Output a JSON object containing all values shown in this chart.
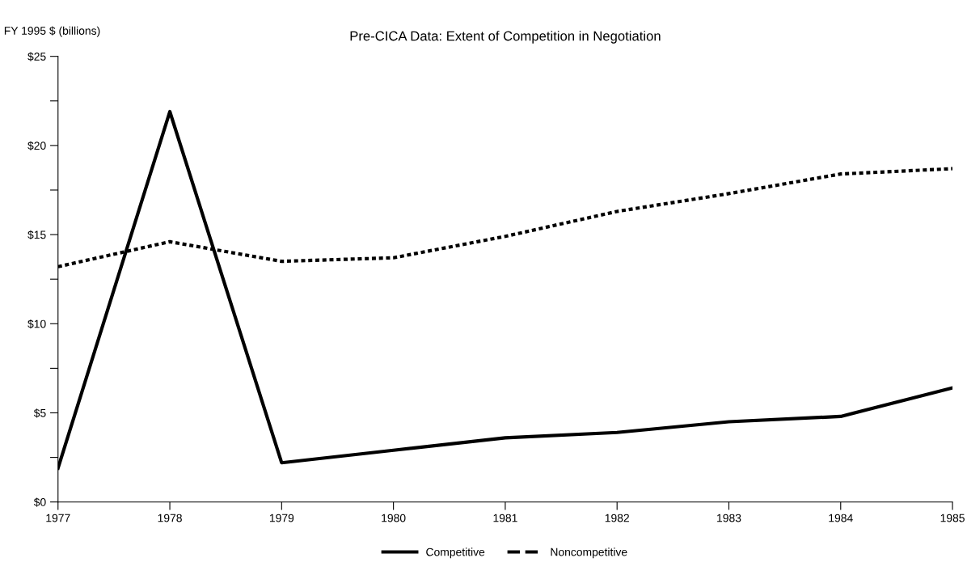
{
  "chart_data": {
    "type": "line",
    "title": "Pre-CICA Data: Extent of Competition in Negotiation",
    "ylabel": "FY 1995 $ (billions)",
    "categories": [
      "1977",
      "1978",
      "1979",
      "1980",
      "1981",
      "1982",
      "1983",
      "1984",
      "1985"
    ],
    "series": [
      {
        "name": "Competitive",
        "color": "#000000",
        "line_style": "solid",
        "values": [
          1.9,
          21.9,
          2.2,
          2.9,
          3.6,
          3.9,
          4.5,
          4.8,
          6.4
        ]
      },
      {
        "name": "Noncompetitive",
        "color": "#000000",
        "line_style": "dotted",
        "values": [
          13.2,
          14.6,
          13.5,
          13.7,
          14.9,
          16.3,
          17.3,
          18.4,
          18.7
        ]
      }
    ],
    "ylim": [
      0,
      25
    ],
    "yticks": [
      {
        "value": 0,
        "label": "$0"
      },
      {
        "value": 2.5,
        "label": null
      },
      {
        "value": 5,
        "label": "$5"
      },
      {
        "value": 7.5,
        "label": null
      },
      {
        "value": 10,
        "label": "$10"
      },
      {
        "value": 12.5,
        "label": null
      },
      {
        "value": 15,
        "label": "$15"
      },
      {
        "value": 17.5,
        "label": null
      },
      {
        "value": 20,
        "label": "$20"
      },
      {
        "value": 22.5,
        "label": null
      },
      {
        "value": 25,
        "label": "$25"
      }
    ],
    "grid": false,
    "legend": "bottom",
    "marker": "none"
  }
}
